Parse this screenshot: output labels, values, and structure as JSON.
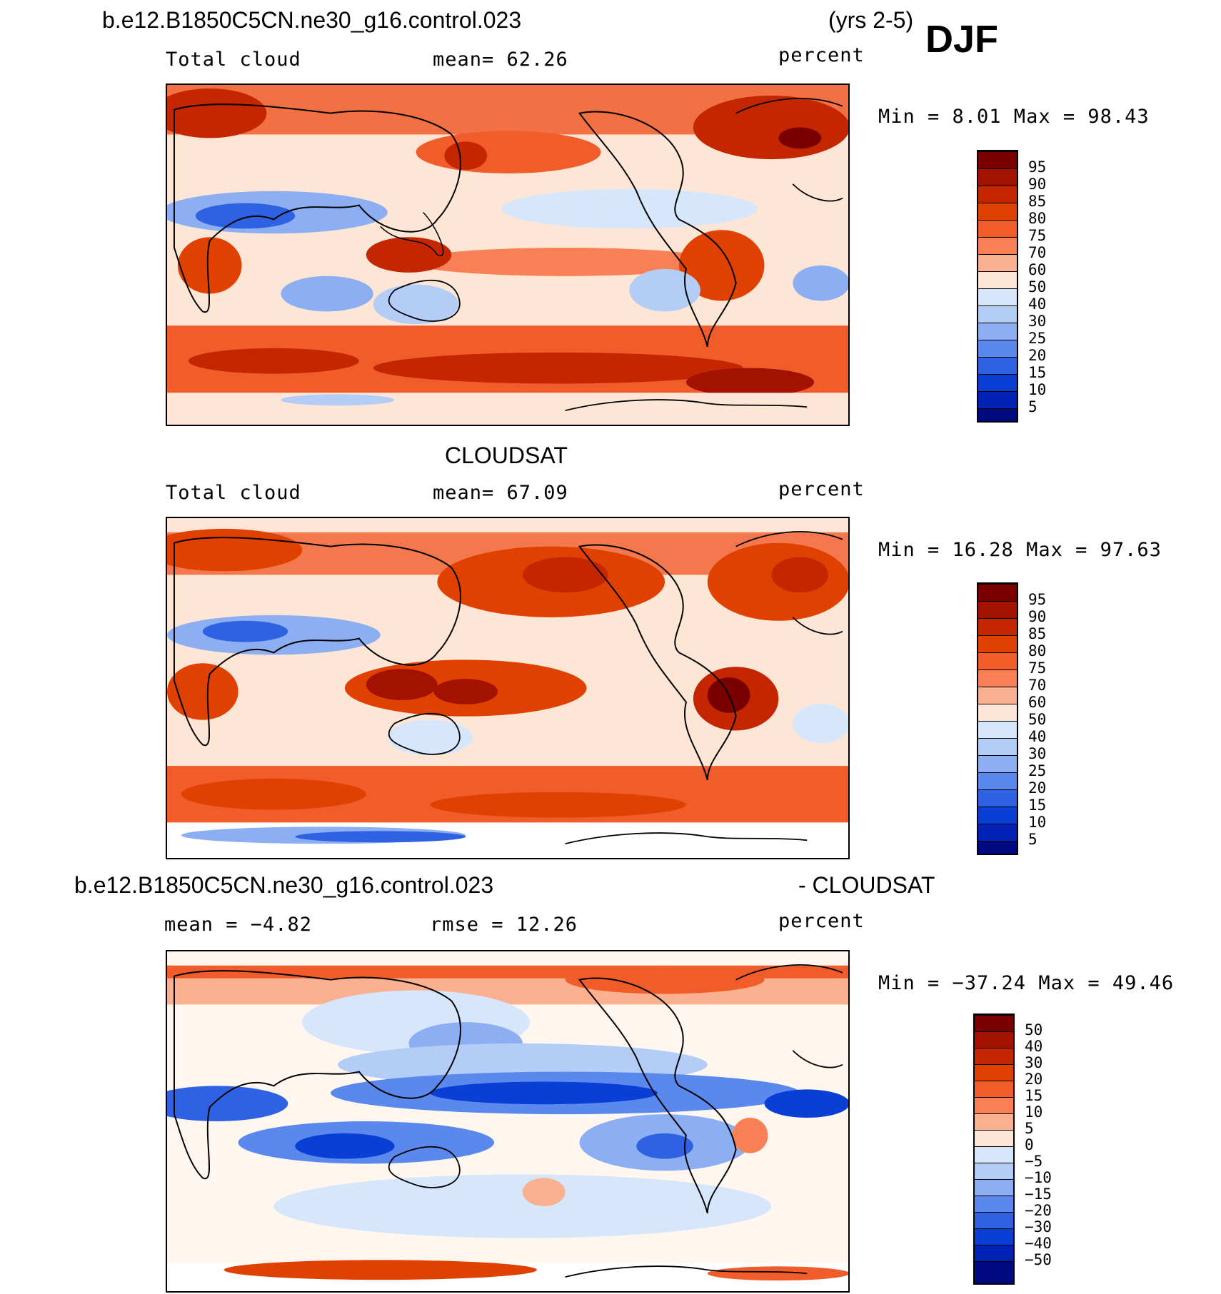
{
  "header": {
    "case_name": "b.e12.B1850C5CN.ne30_g16.control.023",
    "years": "(yrs 2-5)",
    "season": "DJF"
  },
  "panels": [
    {
      "id": "model",
      "variable": "Total cloud",
      "mean_text": "mean=   62.26",
      "units": "percent",
      "minmax_text": "Min =    8.01 Max =   98.43",
      "palette": "sequential",
      "colorbar_labels": [
        "95",
        "90",
        "85",
        "80",
        "75",
        "70",
        "60",
        "50",
        "40",
        "30",
        "25",
        "20",
        "15",
        "10",
        "5"
      ]
    },
    {
      "id": "obs",
      "title": "CLOUDSAT",
      "variable": "Total cloud",
      "mean_text": "mean=   67.09",
      "units": "percent",
      "minmax_text": "Min =   16.28 Max =   97.63",
      "palette": "sequential",
      "colorbar_labels": [
        "95",
        "90",
        "85",
        "80",
        "75",
        "70",
        "60",
        "50",
        "40",
        "30",
        "25",
        "20",
        "15",
        "10",
        "5"
      ]
    },
    {
      "id": "diff",
      "title_left": "b.e12.B1850C5CN.ne30_g16.control.023",
      "title_right": "- CLOUDSAT",
      "mean_text": "mean =   −4.82",
      "rmse_text": "rmse =   12.26",
      "units": "percent",
      "minmax_text": "Min = −37.24 Max =   49.46",
      "palette": "diverging",
      "colorbar_labels": [
        "50",
        "40",
        "30",
        "20",
        "15",
        "10",
        "5",
        "0",
        "−5",
        "−10",
        "−15",
        "−20",
        "−30",
        "−40",
        "−50"
      ]
    }
  ],
  "colors": {
    "sequential": [
      "#7a0000",
      "#a31200",
      "#c42600",
      "#e04000",
      "#f05c2a",
      "#f98055",
      "#fbb08f",
      "#fde6d6",
      "#d6e6fb",
      "#b3cdf7",
      "#8caef2",
      "#5a88ec",
      "#2f62e3",
      "#0a3fd6",
      "#0023b5",
      "#000a80"
    ],
    "diverging": [
      "#7a0000",
      "#a31200",
      "#c42600",
      "#e04000",
      "#f05c2a",
      "#f98055",
      "#fbb08f",
      "#fde6d6",
      "#fff7ef",
      "#d6e6fb",
      "#b3cdf7",
      "#8caef2",
      "#5a88ec",
      "#2f62e3",
      "#0a3fd6",
      "#0023b5",
      "#000a80"
    ]
  }
}
